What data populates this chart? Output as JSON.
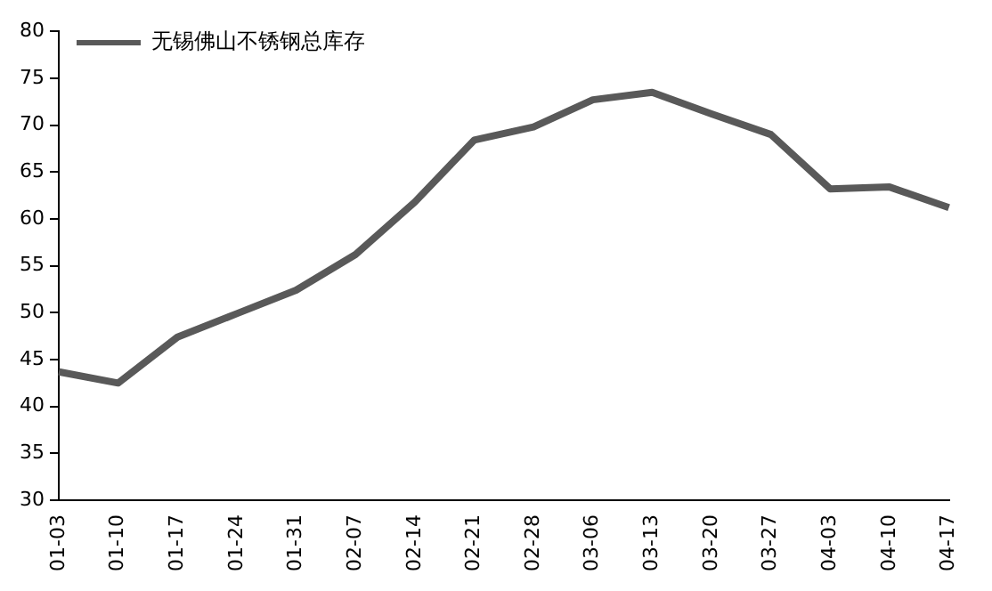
{
  "chart_data": {
    "type": "line",
    "categories": [
      "01-03",
      "01-10",
      "01-17",
      "01-24",
      "01-31",
      "02-07",
      "02-14",
      "02-21",
      "02-28",
      "03-06",
      "03-13",
      "03-20",
      "03-27",
      "04-03",
      "04-10",
      "04-17"
    ],
    "series": [
      {
        "name": "无锡佛山不锈钢总库存",
        "color": "#595959",
        "values": [
          43.7,
          42.5,
          47.4,
          49.9,
          52.4,
          56.2,
          61.8,
          68.4,
          69.8,
          72.7,
          73.5,
          71.2,
          69.0,
          63.2,
          63.4,
          61.2
        ]
      }
    ],
    "ylim": [
      30,
      80
    ],
    "yticks": [
      30,
      35,
      40,
      45,
      50,
      55,
      60,
      65,
      70,
      75,
      80
    ],
    "grid": false,
    "legend": "top left",
    "marker": "none",
    "line_style": "solid"
  }
}
